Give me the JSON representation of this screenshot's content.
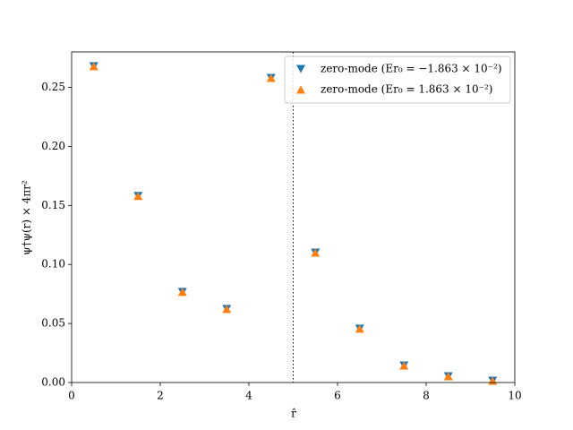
{
  "chart_data": {
    "type": "scatter",
    "xlabel": "r̂",
    "ylabel": "ψ†ψ(r) × 4πr²",
    "x": [
      0.5,
      1.5,
      2.5,
      3.5,
      4.5,
      5.5,
      6.5,
      7.5,
      8.5,
      9.5
    ],
    "series": [
      {
        "name": "zero-mode (Er₀ = −1.863 × 10⁻²)",
        "color": "#1f77b4",
        "marker": "v",
        "values": [
          0.268,
          0.158,
          0.0767,
          0.0623,
          0.258,
          0.11,
          0.0456,
          0.0144,
          0.0053,
          0.0015
        ]
      },
      {
        "name": "zero-mode (Er₀ = 1.863 × 10⁻²)",
        "color": "#ff7f0e",
        "marker": "^",
        "values": [
          0.268,
          0.158,
          0.0767,
          0.0623,
          0.258,
          0.11,
          0.0456,
          0.0144,
          0.0053,
          0.0015
        ]
      }
    ],
    "vline": 5,
    "xlim": [
      0,
      10
    ],
    "xticks": [
      0,
      2,
      4,
      6,
      8,
      10
    ],
    "ylim": [
      0,
      0.28
    ],
    "yticks": [
      {
        "value": 0,
        "label": "0.00"
      },
      0.05,
      {
        "value": 0.1,
        "label": "0.10"
      },
      0.15,
      {
        "value": 0.2,
        "label": "0.20"
      },
      0.25
    ],
    "legend": "upper right"
  }
}
